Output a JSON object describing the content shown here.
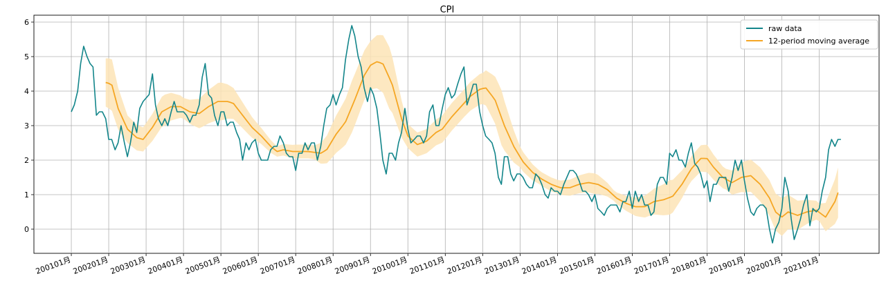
{
  "chart_data": {
    "type": "line",
    "title": "CPI",
    "xlabel": "",
    "ylabel": "",
    "ylim": [
      -0.7,
      6.2
    ],
    "grid": true,
    "legend_position": "top-right",
    "x_tick_labels": [
      "200101月",
      "200201月",
      "200301月",
      "200401月",
      "200501月",
      "200601月",
      "200701月",
      "200801月",
      "200901月",
      "201001月",
      "201101月",
      "201201月",
      "201301月",
      "201401月",
      "201501月",
      "201601月",
      "201701月",
      "201801月",
      "201901月",
      "202001月",
      "202101月"
    ],
    "y_ticks": [
      0,
      1,
      2,
      3,
      4,
      5,
      6
    ],
    "colors": {
      "raw": "#12858a",
      "ma": "#f5a623",
      "band": "#fde4b6"
    },
    "raw_keyframes": [
      [
        2001.0,
        3.4
      ],
      [
        2001.08,
        3.6
      ],
      [
        2001.17,
        4.0
      ],
      [
        2001.25,
        4.8
      ],
      [
        2001.33,
        5.3
      ],
      [
        2001.42,
        5.0
      ],
      [
        2001.5,
        4.8
      ],
      [
        2001.58,
        4.7
      ],
      [
        2001.67,
        3.3
      ],
      [
        2001.75,
        3.4
      ],
      [
        2001.83,
        3.4
      ],
      [
        2001.92,
        3.2
      ],
      [
        2002.0,
        2.6
      ],
      [
        2002.08,
        2.6
      ],
      [
        2002.17,
        2.3
      ],
      [
        2002.25,
        2.5
      ],
      [
        2002.33,
        3.0
      ],
      [
        2002.42,
        2.5
      ],
      [
        2002.5,
        2.1
      ],
      [
        2002.58,
        2.5
      ],
      [
        2002.67,
        3.1
      ],
      [
        2002.75,
        2.8
      ],
      [
        2002.83,
        3.5
      ],
      [
        2002.92,
        3.7
      ],
      [
        2003.0,
        3.8
      ],
      [
        2003.08,
        3.9
      ],
      [
        2003.17,
        4.5
      ],
      [
        2003.25,
        3.6
      ],
      [
        2003.33,
        3.2
      ],
      [
        2003.42,
        3.0
      ],
      [
        2003.5,
        3.2
      ],
      [
        2003.58,
        3.0
      ],
      [
        2003.67,
        3.4
      ],
      [
        2003.75,
        3.7
      ],
      [
        2003.83,
        3.4
      ],
      [
        2003.92,
        3.4
      ],
      [
        2004.0,
        3.4
      ],
      [
        2004.08,
        3.3
      ],
      [
        2004.17,
        3.1
      ],
      [
        2004.25,
        3.3
      ],
      [
        2004.33,
        3.3
      ],
      [
        2004.42,
        3.6
      ],
      [
        2004.5,
        4.4
      ],
      [
        2004.58,
        4.8
      ],
      [
        2004.67,
        3.9
      ],
      [
        2004.75,
        3.8
      ],
      [
        2004.83,
        3.3
      ],
      [
        2004.92,
        3.0
      ],
      [
        2005.0,
        3.4
      ],
      [
        2005.08,
        3.4
      ],
      [
        2005.17,
        3.0
      ],
      [
        2005.25,
        3.1
      ],
      [
        2005.33,
        3.1
      ],
      [
        2005.42,
        2.8
      ],
      [
        2005.5,
        2.6
      ],
      [
        2005.58,
        2.0
      ],
      [
        2005.67,
        2.5
      ],
      [
        2005.75,
        2.3
      ],
      [
        2005.83,
        2.5
      ],
      [
        2005.92,
        2.6
      ],
      [
        2006.0,
        2.2
      ],
      [
        2006.08,
        2.0
      ],
      [
        2006.17,
        2.0
      ],
      [
        2006.25,
        2.0
      ],
      [
        2006.33,
        2.3
      ],
      [
        2006.42,
        2.4
      ],
      [
        2006.5,
        2.4
      ],
      [
        2006.58,
        2.7
      ],
      [
        2006.67,
        2.5
      ],
      [
        2006.75,
        2.2
      ],
      [
        2006.83,
        2.1
      ],
      [
        2006.92,
        2.1
      ],
      [
        2007.0,
        1.7
      ],
      [
        2007.08,
        2.2
      ],
      [
        2007.17,
        2.2
      ],
      [
        2007.25,
        2.5
      ],
      [
        2007.33,
        2.3
      ],
      [
        2007.42,
        2.5
      ],
      [
        2007.5,
        2.5
      ],
      [
        2007.58,
        2.0
      ],
      [
        2007.67,
        2.4
      ],
      [
        2007.75,
        3.0
      ],
      [
        2007.83,
        3.5
      ],
      [
        2007.92,
        3.6
      ],
      [
        2008.0,
        3.9
      ],
      [
        2008.08,
        3.6
      ],
      [
        2008.17,
        3.9
      ],
      [
        2008.25,
        4.1
      ],
      [
        2008.33,
        4.9
      ],
      [
        2008.42,
        5.5
      ],
      [
        2008.5,
        5.9
      ],
      [
        2008.58,
        5.6
      ],
      [
        2008.67,
        5.0
      ],
      [
        2008.75,
        4.7
      ],
      [
        2008.83,
        4.1
      ],
      [
        2008.92,
        3.7
      ],
      [
        2009.0,
        4.1
      ],
      [
        2009.08,
        3.9
      ],
      [
        2009.17,
        3.5
      ],
      [
        2009.25,
        2.8
      ],
      [
        2009.33,
        2.0
      ],
      [
        2009.42,
        1.6
      ],
      [
        2009.5,
        2.2
      ],
      [
        2009.58,
        2.2
      ],
      [
        2009.67,
        2.0
      ],
      [
        2009.75,
        2.5
      ],
      [
        2009.83,
        2.8
      ],
      [
        2009.92,
        3.5
      ],
      [
        2010.0,
        2.9
      ],
      [
        2010.08,
        2.5
      ],
      [
        2010.17,
        2.6
      ],
      [
        2010.25,
        2.7
      ],
      [
        2010.33,
        2.7
      ],
      [
        2010.42,
        2.5
      ],
      [
        2010.5,
        2.7
      ],
      [
        2010.58,
        3.4
      ],
      [
        2010.67,
        3.6
      ],
      [
        2010.75,
        3.0
      ],
      [
        2010.83,
        3.0
      ],
      [
        2010.92,
        3.5
      ],
      [
        2011.0,
        3.9
      ],
      [
        2011.08,
        4.1
      ],
      [
        2011.17,
        3.8
      ],
      [
        2011.25,
        3.9
      ],
      [
        2011.33,
        4.2
      ],
      [
        2011.42,
        4.5
      ],
      [
        2011.5,
        4.7
      ],
      [
        2011.58,
        3.6
      ],
      [
        2011.67,
        3.9
      ],
      [
        2011.75,
        4.2
      ],
      [
        2011.83,
        4.2
      ],
      [
        2011.92,
        3.4
      ],
      [
        2012.0,
        3.0
      ],
      [
        2012.08,
        2.7
      ],
      [
        2012.17,
        2.6
      ],
      [
        2012.25,
        2.5
      ],
      [
        2012.33,
        2.2
      ],
      [
        2012.42,
        1.5
      ],
      [
        2012.5,
        1.3
      ],
      [
        2012.58,
        2.1
      ],
      [
        2012.67,
        2.1
      ],
      [
        2012.75,
        1.6
      ],
      [
        2012.83,
        1.4
      ],
      [
        2012.92,
        1.6
      ],
      [
        2013.0,
        1.6
      ],
      [
        2013.08,
        1.5
      ],
      [
        2013.17,
        1.3
      ],
      [
        2013.25,
        1.2
      ],
      [
        2013.33,
        1.2
      ],
      [
        2013.42,
        1.6
      ],
      [
        2013.5,
        1.5
      ],
      [
        2013.58,
        1.3
      ],
      [
        2013.67,
        1.0
      ],
      [
        2013.75,
        0.9
      ],
      [
        2013.83,
        1.2
      ],
      [
        2013.92,
        1.1
      ],
      [
        2014.0,
        1.1
      ],
      [
        2014.08,
        1.0
      ],
      [
        2014.17,
        1.3
      ],
      [
        2014.25,
        1.5
      ],
      [
        2014.33,
        1.7
      ],
      [
        2014.42,
        1.7
      ],
      [
        2014.5,
        1.6
      ],
      [
        2014.58,
        1.4
      ],
      [
        2014.67,
        1.1
      ],
      [
        2014.75,
        1.1
      ],
      [
        2014.83,
        1.0
      ],
      [
        2014.92,
        0.8
      ],
      [
        2015.0,
        1.0
      ],
      [
        2015.08,
        0.6
      ],
      [
        2015.17,
        0.5
      ],
      [
        2015.25,
        0.4
      ],
      [
        2015.33,
        0.6
      ],
      [
        2015.42,
        0.7
      ],
      [
        2015.5,
        0.7
      ],
      [
        2015.58,
        0.7
      ],
      [
        2015.67,
        0.5
      ],
      [
        2015.75,
        0.8
      ],
      [
        2015.83,
        0.8
      ],
      [
        2015.92,
        1.1
      ],
      [
        2016.0,
        0.6
      ],
      [
        2016.08,
        1.1
      ],
      [
        2016.17,
        0.8
      ],
      [
        2016.25,
        1.0
      ],
      [
        2016.33,
        0.7
      ],
      [
        2016.42,
        0.7
      ],
      [
        2016.5,
        0.4
      ],
      [
        2016.58,
        0.5
      ],
      [
        2016.67,
        1.3
      ],
      [
        2016.75,
        1.5
      ],
      [
        2016.83,
        1.5
      ],
      [
        2016.92,
        1.3
      ],
      [
        2017.0,
        2.2
      ],
      [
        2017.08,
        2.1
      ],
      [
        2017.17,
        2.3
      ],
      [
        2017.25,
        2.0
      ],
      [
        2017.33,
        2.0
      ],
      [
        2017.42,
        1.8
      ],
      [
        2017.5,
        2.2
      ],
      [
        2017.58,
        2.5
      ],
      [
        2017.67,
        1.9
      ],
      [
        2017.75,
        1.8
      ],
      [
        2017.83,
        1.6
      ],
      [
        2017.92,
        1.2
      ],
      [
        2018.0,
        1.4
      ],
      [
        2018.08,
        0.8
      ],
      [
        2018.17,
        1.3
      ],
      [
        2018.25,
        1.3
      ],
      [
        2018.33,
        1.5
      ],
      [
        2018.42,
        1.5
      ],
      [
        2018.5,
        1.5
      ],
      [
        2018.58,
        1.1
      ],
      [
        2018.67,
        1.5
      ],
      [
        2018.75,
        2.0
      ],
      [
        2018.83,
        1.7
      ],
      [
        2018.92,
        2.0
      ],
      [
        2019.0,
        1.4
      ],
      [
        2019.08,
        0.9
      ],
      [
        2019.17,
        0.5
      ],
      [
        2019.25,
        0.4
      ],
      [
        2019.33,
        0.6
      ],
      [
        2019.42,
        0.7
      ],
      [
        2019.5,
        0.7
      ],
      [
        2019.58,
        0.6
      ],
      [
        2019.67,
        0.0
      ],
      [
        2019.75,
        -0.4
      ],
      [
        2019.83,
        0.0
      ],
      [
        2019.92,
        0.2
      ],
      [
        2020.0,
        0.6
      ],
      [
        2020.08,
        1.5
      ],
      [
        2020.17,
        1.1
      ],
      [
        2020.25,
        0.3
      ],
      [
        2020.33,
        -0.3
      ],
      [
        2020.42,
        0.0
      ],
      [
        2020.5,
        0.3
      ],
      [
        2020.58,
        0.7
      ],
      [
        2020.67,
        1.0
      ],
      [
        2020.75,
        0.1
      ],
      [
        2020.83,
        0.6
      ],
      [
        2020.92,
        0.5
      ],
      [
        2021.0,
        0.6
      ],
      [
        2021.08,
        1.1
      ],
      [
        2021.17,
        1.5
      ],
      [
        2021.25,
        2.3
      ],
      [
        2021.33,
        2.6
      ],
      [
        2021.42,
        2.4
      ],
      [
        2021.5,
        2.6
      ],
      [
        2021.58,
        2.6
      ]
    ],
    "ma_keyframes": [
      [
        2001.92,
        4.25
      ],
      [
        2002.08,
        4.2
      ],
      [
        2002.25,
        3.5
      ],
      [
        2002.5,
        2.9
      ],
      [
        2002.75,
        2.65
      ],
      [
        2002.92,
        2.6
      ],
      [
        2003.17,
        2.95
      ],
      [
        2003.42,
        3.4
      ],
      [
        2003.67,
        3.55
      ],
      [
        2003.92,
        3.55
      ],
      [
        2004.17,
        3.4
      ],
      [
        2004.42,
        3.35
      ],
      [
        2004.67,
        3.55
      ],
      [
        2004.92,
        3.7
      ],
      [
        2005.17,
        3.7
      ],
      [
        2005.33,
        3.65
      ],
      [
        2005.58,
        3.3
      ],
      [
        2005.83,
        2.95
      ],
      [
        2006.08,
        2.7
      ],
      [
        2006.33,
        2.4
      ],
      [
        2006.5,
        2.25
      ],
      [
        2006.67,
        2.3
      ],
      [
        2006.92,
        2.25
      ],
      [
        2007.33,
        2.25
      ],
      [
        2007.67,
        2.2
      ],
      [
        2007.83,
        2.3
      ],
      [
        2008.08,
        2.75
      ],
      [
        2008.33,
        3.1
      ],
      [
        2008.58,
        3.75
      ],
      [
        2008.83,
        4.45
      ],
      [
        2009.0,
        4.75
      ],
      [
        2009.17,
        4.85
      ],
      [
        2009.33,
        4.8
      ],
      [
        2009.58,
        4.2
      ],
      [
        2009.83,
        3.2
      ],
      [
        2010.0,
        2.7
      ],
      [
        2010.25,
        2.45
      ],
      [
        2010.5,
        2.55
      ],
      [
        2010.75,
        2.8
      ],
      [
        2010.92,
        2.9
      ],
      [
        2011.17,
        3.25
      ],
      [
        2011.42,
        3.55
      ],
      [
        2011.67,
        3.85
      ],
      [
        2011.92,
        4.05
      ],
      [
        2012.08,
        4.1
      ],
      [
        2012.33,
        3.75
      ],
      [
        2012.58,
        3.0
      ],
      [
        2012.83,
        2.4
      ],
      [
        2013.08,
        1.95
      ],
      [
        2013.33,
        1.65
      ],
      [
        2013.58,
        1.45
      ],
      [
        2013.83,
        1.3
      ],
      [
        2014.08,
        1.2
      ],
      [
        2014.33,
        1.2
      ],
      [
        2014.58,
        1.3
      ],
      [
        2014.83,
        1.35
      ],
      [
        2015.08,
        1.3
      ],
      [
        2015.33,
        1.15
      ],
      [
        2015.58,
        0.9
      ],
      [
        2015.83,
        0.75
      ],
      [
        2016.08,
        0.65
      ],
      [
        2016.33,
        0.65
      ],
      [
        2016.58,
        0.8
      ],
      [
        2016.83,
        0.85
      ],
      [
        2017.08,
        0.95
      ],
      [
        2017.33,
        1.3
      ],
      [
        2017.58,
        1.75
      ],
      [
        2017.83,
        2.05
      ],
      [
        2018.0,
        2.05
      ],
      [
        2018.17,
        1.8
      ],
      [
        2018.42,
        1.5
      ],
      [
        2018.67,
        1.35
      ],
      [
        2018.92,
        1.5
      ],
      [
        2019.17,
        1.55
      ],
      [
        2019.42,
        1.3
      ],
      [
        2019.67,
        0.9
      ],
      [
        2019.83,
        0.5
      ],
      [
        2020.0,
        0.35
      ],
      [
        2020.17,
        0.5
      ],
      [
        2020.42,
        0.4
      ],
      [
        2020.67,
        0.5
      ],
      [
        2020.92,
        0.55
      ],
      [
        2021.17,
        0.35
      ],
      [
        2021.42,
        0.8
      ],
      [
        2021.58,
        1.3
      ]
    ],
    "band_halfwidth_keyframes": [
      [
        2001.92,
        0.7
      ],
      [
        2002.08,
        0.75
      ],
      [
        2002.5,
        0.4
      ],
      [
        2002.92,
        0.35
      ],
      [
        2003.5,
        0.45
      ],
      [
        2004.0,
        0.3
      ],
      [
        2004.5,
        0.45
      ],
      [
        2005.0,
        0.55
      ],
      [
        2005.5,
        0.4
      ],
      [
        2006.0,
        0.25
      ],
      [
        2006.5,
        0.15
      ],
      [
        2007.0,
        0.2
      ],
      [
        2007.5,
        0.2
      ],
      [
        2008.0,
        0.5
      ],
      [
        2008.5,
        0.75
      ],
      [
        2009.0,
        0.7
      ],
      [
        2009.5,
        0.9
      ],
      [
        2010.0,
        0.35
      ],
      [
        2010.5,
        0.35
      ],
      [
        2011.0,
        0.4
      ],
      [
        2011.5,
        0.4
      ],
      [
        2012.0,
        0.45
      ],
      [
        2012.5,
        0.8
      ],
      [
        2013.0,
        0.3
      ],
      [
        2013.5,
        0.2
      ],
      [
        2014.0,
        0.2
      ],
      [
        2014.5,
        0.25
      ],
      [
        2015.0,
        0.3
      ],
      [
        2015.5,
        0.15
      ],
      [
        2016.0,
        0.25
      ],
      [
        2016.5,
        0.35
      ],
      [
        2017.0,
        0.5
      ],
      [
        2017.5,
        0.35
      ],
      [
        2018.0,
        0.4
      ],
      [
        2018.5,
        0.3
      ],
      [
        2019.0,
        0.45
      ],
      [
        2019.5,
        0.5
      ],
      [
        2020.0,
        0.55
      ],
      [
        2020.5,
        0.4
      ],
      [
        2021.0,
        0.25
      ],
      [
        2021.58,
        0.8
      ]
    ],
    "series": [
      {
        "name": "raw data",
        "color": "#12858a"
      },
      {
        "name": "12-period moving average",
        "color": "#f5a623"
      }
    ]
  }
}
